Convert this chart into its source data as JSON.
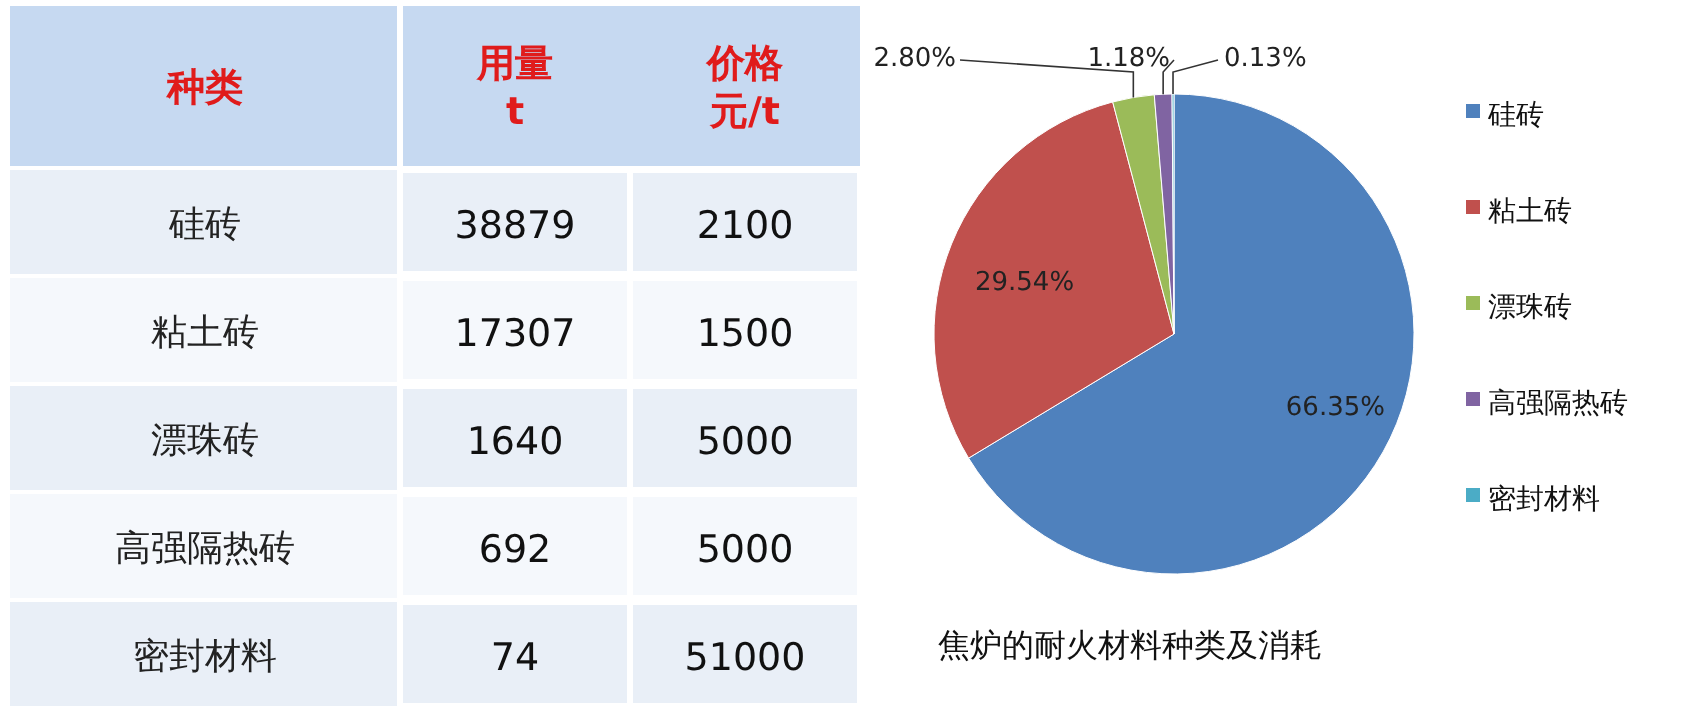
{
  "chart_data": [
    {
      "type": "heatmap",
      "ylabel": "种类",
      "categories": [
        "用量t",
        "价格元/t"
      ],
      "y_categories": [
        "硅砖",
        "粘土砖",
        "漂珠砖",
        "高强隔热砖",
        "密封材料"
      ],
      "cells": [
        [
          38879,
          2100
        ],
        [
          17307,
          1500
        ],
        [
          1640,
          5000
        ],
        [
          692,
          5000
        ],
        [
          74,
          51000
        ]
      ],
      "data_labels": true
    },
    {
      "type": "pie",
      "title": "焦炉的耐火材料种类及消耗",
      "categories": [
        "硅砖",
        "粘土砖",
        "漂珠砖",
        "高强隔热砖",
        "密封材料"
      ],
      "values": [
        66.35,
        29.54,
        2.8,
        1.18,
        0.13
      ],
      "colors": [
        "#4f81bd",
        "#c0504d",
        "#9bbb59",
        "#8064a2",
        "#4bacc6"
      ],
      "value_labels": [
        "66.35%",
        "29.54%",
        "2.80%",
        "1.18%",
        "0.13%"
      ],
      "legend": "right"
    }
  ]
}
